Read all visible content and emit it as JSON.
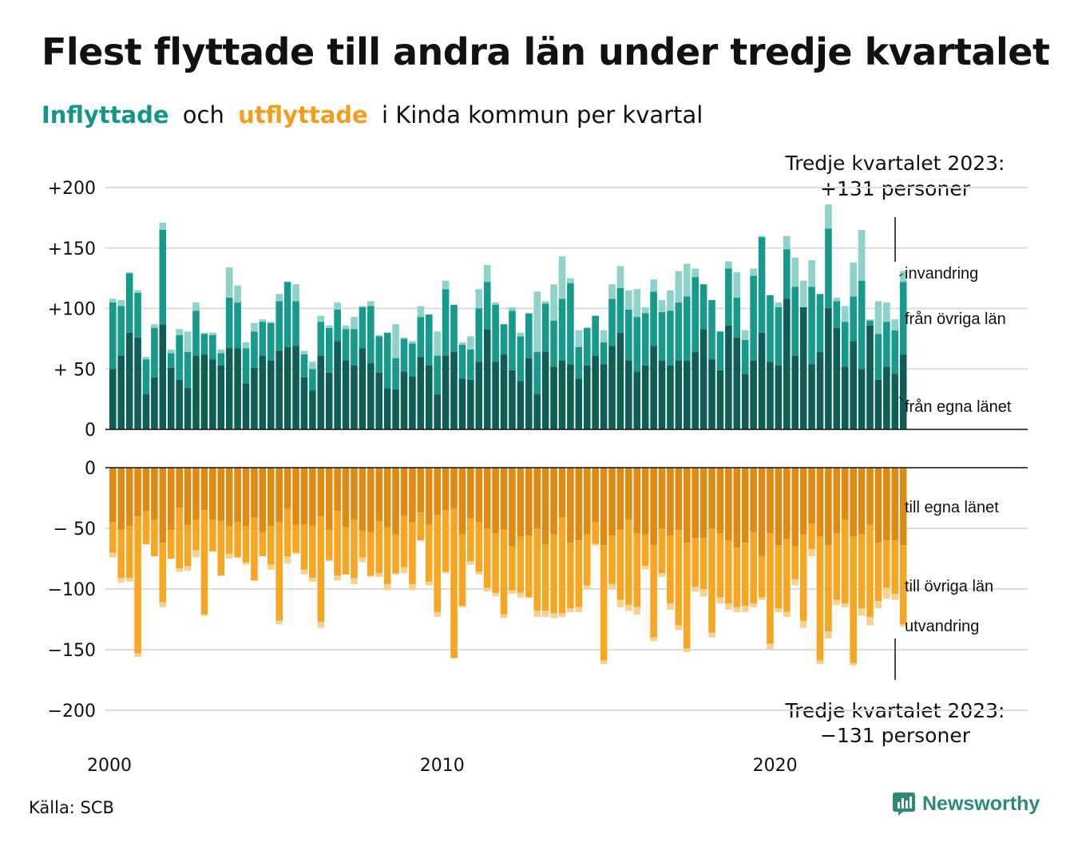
{
  "header": {
    "title": "Flest flyttade till andra län under tredje kvartalet",
    "subtitle_in": "Inflyttade",
    "subtitle_och": "och",
    "subtitle_out": "utflyttade",
    "subtitle_rest": "i Kinda kommun per kvartal"
  },
  "footer": {
    "source": "Källa: SCB",
    "brand": "Newsworthy",
    "brand_icon": "newsworthy-logo-icon"
  },
  "colors": {
    "in_own_county": "#0f5e56",
    "in_other_county": "#17998c",
    "in_immigration": "#8ed2ca",
    "out_own_county": "#df8a12",
    "out_other_county": "#f7a623",
    "out_emigration": "#f8d08f",
    "brand": "#2d8a79"
  },
  "annotations": {
    "top_line1": "Tredje kvartalet 2023:",
    "top_line2": "+131 personer",
    "bottom_line1": "Tredje kvartalet 2023:",
    "bottom_line2": "−131 personer"
  },
  "chart_data": [
    {
      "type": "bar",
      "stacked": true,
      "panel": "inflyttade",
      "x_start": "2000 Q1",
      "x_end": "2023 Q3",
      "xticks": [
        "2000",
        "2010",
        "2020"
      ],
      "yticks": [
        "+200",
        "+150",
        "+100",
        "+ 50",
        "0"
      ],
      "ylim": [
        0,
        200
      ],
      "grid": true,
      "series": [
        {
          "name": "från egna länet",
          "values": [
            50,
            61,
            80,
            76,
            29,
            43,
            87,
            51,
            41,
            34,
            61,
            62,
            58,
            53,
            67,
            67,
            38,
            51,
            61,
            57,
            65,
            68,
            69,
            43,
            32,
            61,
            47,
            73,
            57,
            53,
            67,
            55,
            47,
            34,
            33,
            48,
            44,
            60,
            53,
            29,
            61,
            64,
            42,
            41,
            56,
            83,
            56,
            62,
            49,
            40,
            59,
            29,
            64,
            52,
            57,
            54,
            42,
            53,
            61,
            54,
            69,
            80,
            57,
            48,
            53,
            69,
            57,
            53,
            57,
            57,
            64,
            83,
            58,
            49,
            86,
            76,
            46,
            57,
            80,
            56,
            53,
            108,
            61,
            101,
            54,
            64,
            100,
            84,
            52,
            73,
            50,
            86,
            41,
            52,
            46,
            62
          ]
        },
        {
          "name": "från övriga län",
          "values": [
            55,
            41,
            49,
            37,
            29,
            41,
            78,
            12,
            37,
            30,
            37,
            17,
            20,
            10,
            42,
            38,
            29,
            30,
            28,
            31,
            41,
            54,
            37,
            19,
            18,
            28,
            37,
            26,
            26,
            30,
            34,
            47,
            30,
            46,
            26,
            27,
            27,
            33,
            42,
            32,
            55,
            39,
            28,
            25,
            44,
            39,
            47,
            25,
            49,
            37,
            37,
            35,
            40,
            38,
            51,
            67,
            26,
            31,
            33,
            18,
            39,
            37,
            42,
            45,
            43,
            45,
            40,
            45,
            48,
            53,
            62,
            37,
            49,
            32,
            47,
            33,
            28,
            70,
            79,
            55,
            48,
            41,
            57,
            0,
            64,
            48,
            66,
            22,
            37,
            37,
            73,
            4,
            38,
            37,
            36,
            60
          ]
        },
        {
          "name": "invandring",
          "values": [
            3,
            5,
            1,
            2,
            2,
            3,
            6,
            3,
            5,
            17,
            7,
            1,
            2,
            3,
            25,
            14,
            5,
            7,
            2,
            1,
            6,
            0,
            14,
            3,
            6,
            5,
            2,
            6,
            3,
            10,
            1,
            4,
            1,
            0,
            28,
            1,
            2,
            9,
            0,
            20,
            7,
            0,
            2,
            11,
            16,
            14,
            2,
            0,
            3,
            3,
            0,
            50,
            2,
            30,
            35,
            4,
            14,
            0,
            0,
            10,
            12,
            18,
            16,
            23,
            5,
            10,
            10,
            17,
            26,
            27,
            7,
            0,
            0,
            0,
            6,
            21,
            8,
            6,
            1,
            0,
            4,
            11,
            24,
            22,
            22,
            0,
            20,
            3,
            13,
            28,
            42,
            1,
            27,
            16,
            9,
            9
          ]
        }
      ]
    },
    {
      "type": "bar",
      "stacked": true,
      "panel": "utflyttade",
      "x_start": "2000 Q1",
      "x_end": "2023 Q3",
      "xticks": [
        "2000",
        "2010",
        "2020"
      ],
      "yticks": [
        "0",
        "− 50",
        "−100",
        "−150",
        "−200"
      ],
      "ylim": [
        -200,
        0
      ],
      "grid": true,
      "series": [
        {
          "name": "till egna länet",
          "values": [
            -45,
            -51,
            -48,
            -40,
            -36,
            -43,
            -62,
            -51,
            -33,
            -47,
            -43,
            -35,
            -43,
            -44,
            -48,
            -45,
            -48,
            -41,
            -53,
            -48,
            -45,
            -34,
            -47,
            -47,
            -48,
            -40,
            -51,
            -36,
            -49,
            -43,
            -52,
            -53,
            -44,
            -49,
            -55,
            -40,
            -45,
            -37,
            -47,
            -39,
            -35,
            -34,
            -55,
            -42,
            -45,
            -50,
            -54,
            -51,
            -65,
            -57,
            -56,
            -50,
            -63,
            -55,
            -41,
            -62,
            -60,
            -55,
            -45,
            -64,
            -56,
            -51,
            -43,
            -54,
            -55,
            -64,
            -50,
            -56,
            -51,
            -62,
            -58,
            -58,
            -50,
            -54,
            -60,
            -66,
            -62,
            -53,
            -73,
            -54,
            -64,
            -59,
            -65,
            -55,
            -46,
            -57,
            -64,
            -54,
            -43,
            -57,
            -55,
            -47,
            -62,
            -60,
            -60,
            -64
          ]
        },
        {
          "name": "till övriga län",
          "values": [
            -25,
            -40,
            -43,
            -113,
            -27,
            -30,
            -49,
            -24,
            -50,
            -34,
            -25,
            -86,
            -26,
            -45,
            -23,
            -29,
            -30,
            -52,
            -20,
            -32,
            -81,
            -39,
            -23,
            -37,
            -43,
            -87,
            -25,
            -53,
            -39,
            -48,
            -22,
            -36,
            -43,
            -47,
            -32,
            -42,
            -51,
            -23,
            -47,
            -80,
            -51,
            -123,
            -59,
            -35,
            -41,
            -49,
            -49,
            -70,
            -36,
            -46,
            -51,
            -68,
            -55,
            -65,
            -79,
            -54,
            -55,
            -42,
            -18,
            -95,
            -40,
            -58,
            -70,
            -61,
            -26,
            -76,
            -37,
            -56,
            -79,
            -87,
            -40,
            -42,
            -86,
            -53,
            -52,
            -49,
            -52,
            -59,
            -34,
            -91,
            -52,
            -60,
            -27,
            -71,
            -21,
            -102,
            -71,
            -55,
            -69,
            -104,
            -61,
            -76,
            -48,
            -39,
            -44,
            -65
          ]
        },
        {
          "name": "utvandring",
          "values": [
            -4,
            -4,
            -3,
            -3,
            0,
            0,
            -4,
            0,
            -3,
            -4,
            -6,
            -1,
            0,
            0,
            -4,
            0,
            -2,
            0,
            0,
            -4,
            -3,
            -6,
            -1,
            -4,
            -3,
            -5,
            -1,
            -4,
            0,
            -5,
            -4,
            -1,
            -3,
            -5,
            -1,
            -5,
            -5,
            0,
            -3,
            -4,
            -1,
            0,
            -1,
            -3,
            -2,
            -3,
            -3,
            -3,
            -3,
            -4,
            0,
            -5,
            -5,
            -4,
            -3,
            -3,
            -4,
            -3,
            -1,
            -3,
            -4,
            -6,
            -5,
            -6,
            -3,
            -3,
            -3,
            -5,
            -4,
            -3,
            -4,
            -6,
            -4,
            -5,
            -5,
            -4,
            -5,
            -3,
            -2,
            -5,
            -3,
            -4,
            -5,
            -6,
            -6,
            -3,
            -6,
            -4,
            -3,
            -2,
            -6,
            -7,
            -6,
            -9,
            -5,
            -2
          ]
        }
      ]
    }
  ]
}
